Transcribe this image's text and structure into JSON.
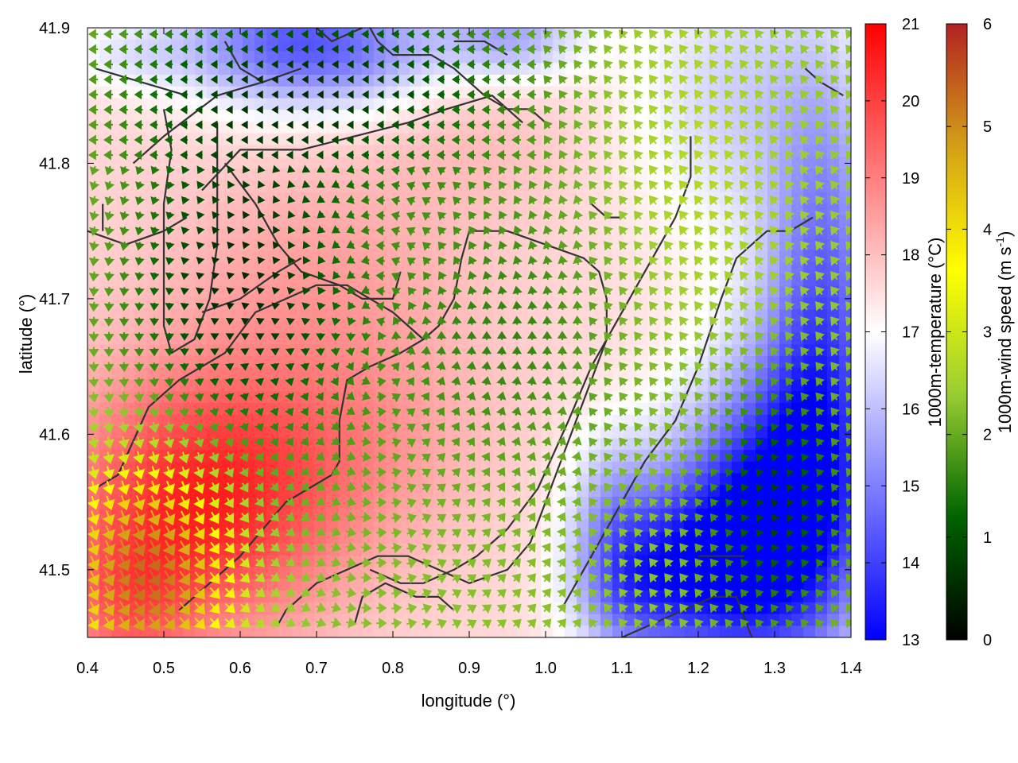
{
  "chart_data": {
    "type": "heatmap",
    "xlabel": "longitude (°)",
    "ylabel": "latitude (°)",
    "xlim": [
      0.4,
      1.4
    ],
    "ylim": [
      41.45,
      41.9
    ],
    "x_ticks": [
      "0.4",
      "0.5",
      "0.6",
      "0.7",
      "0.8",
      "0.9",
      "1.0",
      "1.1",
      "1.2",
      "1.3",
      "1.4"
    ],
    "y_ticks": [
      "41.5",
      "41.6",
      "41.7",
      "41.8",
      "41.9"
    ],
    "temperature_colorbar": {
      "label": "1000m-temperature (°C)",
      "range": [
        13,
        21
      ],
      "ticks": [
        "13",
        "14",
        "15",
        "16",
        "17",
        "18",
        "19",
        "20",
        "21"
      ],
      "colors": [
        "#0000ff",
        "#ffffff",
        "#ff0000"
      ]
    },
    "wind_colorbar": {
      "label_main": "1000m-wind speed (m s",
      "label_sup": "-1",
      "label_end": ")",
      "range": [
        0,
        6
      ],
      "ticks": [
        "0",
        "1",
        "2",
        "3",
        "4",
        "5",
        "6"
      ],
      "colors": [
        "#000000",
        "#006400",
        "#9acd32",
        "#ffff00",
        "#d4a017",
        "#b22222"
      ]
    },
    "temperature_field": {
      "background_c": 17.6,
      "anomalies": [
        {
          "lon": 0.55,
          "lat": 41.55,
          "dT": 2.8,
          "sigma_lon": 0.13,
          "sigma_lat": 0.07
        },
        {
          "lon": 0.76,
          "lat": 41.6,
          "dT": 0.8,
          "sigma_lon": 0.12,
          "sigma_lat": 0.06
        },
        {
          "lon": 0.7,
          "lat": 41.72,
          "dT": 0.8,
          "sigma_lon": 0.14,
          "sigma_lat": 0.06
        },
        {
          "lon": 0.9,
          "lat": 41.82,
          "dT": 0.4,
          "sigma_lon": 0.1,
          "sigma_lat": 0.04
        },
        {
          "lon": 0.66,
          "lat": 41.89,
          "dT": -3.0,
          "sigma_lon": 0.1,
          "sigma_lat": 0.035
        },
        {
          "lon": 0.95,
          "lat": 41.895,
          "dT": -2.0,
          "sigma_lon": 0.07,
          "sigma_lat": 0.025
        },
        {
          "lon": 0.78,
          "lat": 41.88,
          "dT": -1.0,
          "sigma_lon": 0.07,
          "sigma_lat": 0.03
        },
        {
          "lon": 1.29,
          "lat": 41.53,
          "dT": -4.2,
          "sigma_lon": 0.09,
          "sigma_lat": 0.08
        },
        {
          "lon": 1.36,
          "lat": 41.62,
          "dT": -2.5,
          "sigma_lon": 0.06,
          "sigma_lat": 0.1
        },
        {
          "lon": 1.37,
          "lat": 41.76,
          "dT": -1.5,
          "sigma_lon": 0.05,
          "sigma_lat": 0.1
        },
        {
          "lon": 1.18,
          "lat": 41.5,
          "dT": -2.5,
          "sigma_lon": 0.08,
          "sigma_lat": 0.05
        },
        {
          "lon": 1.1,
          "lat": 41.49,
          "dT": -1.8,
          "sigma_lon": 0.05,
          "sigma_lat": 0.04
        },
        {
          "lon": 1.08,
          "lat": 41.56,
          "dT": -1.0,
          "sigma_lon": 0.04,
          "sigma_lat": 0.04
        },
        {
          "lon": 1.25,
          "lat": 41.85,
          "dT": -1.3,
          "sigma_lon": 0.1,
          "sigma_lat": 0.08
        },
        {
          "lon": 0.45,
          "lat": 41.88,
          "dT": -0.8,
          "sigma_lon": 0.06,
          "sigma_lat": 0.02
        },
        {
          "lon": 0.45,
          "lat": 41.47,
          "dT": 1.2,
          "sigma_lon": 0.06,
          "sigma_lat": 0.04
        }
      ]
    },
    "wind_field": {
      "vortex": {
        "lon": 0.78,
        "lat": 41.67
      },
      "centers": [
        {
          "lon": 0.48,
          "lat": 41.5,
          "speed": 5.8,
          "sigma_lon": 0.08,
          "sigma_lat": 0.06
        },
        {
          "lon": 0.6,
          "lat": 41.62,
          "speed": 1.8,
          "sigma_lon": 0.14,
          "sigma_lat": 0.08
        },
        {
          "lon": 0.95,
          "lat": 41.68,
          "speed": 1.5,
          "sigma_lon": 0.12,
          "sigma_lat": 0.08
        },
        {
          "lon": 1.2,
          "lat": 41.8,
          "speed": 2.8,
          "sigma_lon": 0.1,
          "sigma_lat": 0.1
        },
        {
          "lon": 1.3,
          "lat": 41.86,
          "speed": 2.2,
          "sigma_lon": 0.05,
          "sigma_lat": 0.07
        }
      ],
      "base_speed": 2.3,
      "calm_zones": [
        {
          "lon": 0.7,
          "lat": 41.86,
          "sigma_lon": 0.18,
          "sigma_lat": 0.05
        },
        {
          "lon": 0.6,
          "lat": 41.72,
          "sigma_lon": 0.1,
          "sigma_lat": 0.07
        },
        {
          "lon": 1.3,
          "lat": 41.55,
          "sigma_lon": 0.06,
          "sigma_lat": 0.06
        }
      ]
    },
    "contours": [
      [
        [
          0.4,
          41.75
        ],
        [
          0.45,
          41.74
        ],
        [
          0.5,
          41.75
        ],
        [
          0.53,
          41.76
        ]
      ],
      [
        [
          0.46,
          41.8
        ],
        [
          0.5,
          41.82
        ],
        [
          0.57,
          41.85
        ],
        [
          0.63,
          41.86
        ]
      ],
      [
        [
          0.41,
          41.87
        ],
        [
          0.47,
          41.86
        ],
        [
          0.53,
          41.85
        ]
      ],
      [
        [
          0.5,
          41.84
        ],
        [
          0.51,
          41.81
        ],
        [
          0.5,
          41.77
        ],
        [
          0.5,
          41.72
        ],
        [
          0.5,
          41.68
        ],
        [
          0.51,
          41.66
        ],
        [
          0.54,
          41.67
        ],
        [
          0.56,
          41.7
        ],
        [
          0.57,
          41.74
        ],
        [
          0.57,
          41.78
        ],
        [
          0.57,
          41.81
        ],
        [
          0.57,
          41.83
        ]
      ],
      [
        [
          0.58,
          41.8
        ],
        [
          0.62,
          41.77
        ],
        [
          0.65,
          41.74
        ],
        [
          0.68,
          41.72
        ],
        [
          0.73,
          41.71
        ],
        [
          0.76,
          41.7
        ],
        [
          0.78,
          41.7
        ],
        [
          0.8,
          41.7
        ],
        [
          0.81,
          41.72
        ]
      ],
      [
        [
          0.55,
          41.78
        ],
        [
          0.6,
          41.81
        ],
        [
          0.68,
          41.81
        ],
        [
          0.75,
          41.82
        ],
        [
          0.82,
          41.83
        ],
        [
          0.87,
          41.84
        ],
        [
          0.93,
          41.85
        ],
        [
          0.97,
          41.83
        ]
      ],
      [
        [
          0.55,
          41.69
        ],
        [
          0.6,
          41.7
        ],
        [
          0.65,
          41.72
        ],
        [
          0.68,
          41.73
        ]
      ],
      [
        [
          0.58,
          41.89
        ],
        [
          0.6,
          41.87
        ],
        [
          0.63,
          41.86
        ],
        [
          0.68,
          41.87
        ]
      ],
      [
        [
          0.76,
          41.91
        ],
        [
          0.78,
          41.89
        ],
        [
          0.8,
          41.88
        ],
        [
          0.85,
          41.88
        ],
        [
          0.88,
          41.87
        ],
        [
          0.92,
          41.85
        ],
        [
          0.95,
          41.84
        ],
        [
          0.98,
          41.84
        ],
        [
          1.0,
          41.83
        ]
      ],
      [
        [
          0.7,
          41.9
        ],
        [
          0.72,
          41.89
        ],
        [
          0.76,
          41.9
        ]
      ],
      [
        [
          0.88,
          41.89
        ],
        [
          0.92,
          41.89
        ],
        [
          0.95,
          41.88
        ]
      ],
      [
        [
          0.41,
          41.56
        ],
        [
          0.44,
          41.57
        ],
        [
          0.48,
          41.62
        ],
        [
          0.52,
          41.64
        ],
        [
          0.58,
          41.66
        ],
        [
          0.62,
          41.69
        ],
        [
          0.66,
          41.7
        ],
        [
          0.7,
          41.71
        ],
        [
          0.74,
          41.71
        ],
        [
          0.77,
          41.7
        ],
        [
          0.8,
          41.69
        ],
        [
          0.82,
          41.68
        ],
        [
          0.84,
          41.67
        ],
        [
          0.86,
          41.68
        ],
        [
          0.88,
          41.7
        ],
        [
          0.89,
          41.73
        ],
        [
          0.9,
          41.75
        ],
        [
          0.95,
          41.75
        ],
        [
          1.0,
          41.74
        ],
        [
          1.05,
          41.73
        ],
        [
          1.07,
          41.72
        ],
        [
          1.08,
          41.7
        ],
        [
          1.08,
          41.67
        ],
        [
          1.06,
          41.64
        ],
        [
          1.04,
          41.61
        ],
        [
          1.02,
          41.58
        ],
        [
          1.0,
          41.55
        ],
        [
          0.98,
          41.52
        ],
        [
          0.95,
          41.5
        ],
        [
          0.9,
          41.49
        ],
        [
          0.86,
          41.5
        ],
        [
          0.82,
          41.51
        ],
        [
          0.78,
          41.51
        ],
        [
          0.74,
          41.5
        ],
        [
          0.7,
          41.49
        ],
        [
          0.66,
          41.47
        ],
        [
          0.65,
          41.46
        ]
      ],
      [
        [
          0.52,
          41.47
        ],
        [
          0.56,
          41.49
        ],
        [
          0.6,
          41.51
        ],
        [
          0.63,
          41.53
        ],
        [
          0.66,
          41.55
        ],
        [
          0.69,
          41.56
        ],
        [
          0.72,
          41.57
        ],
        [
          0.73,
          41.58
        ],
        [
          0.73,
          41.61
        ],
        [
          0.74,
          41.64
        ],
        [
          0.77,
          41.65
        ],
        [
          0.81,
          41.66
        ],
        [
          0.84,
          41.67
        ]
      ],
      [
        [
          0.77,
          41.5
        ],
        [
          0.81,
          41.49
        ],
        [
          0.84,
          41.49
        ],
        [
          0.88,
          41.5
        ],
        [
          0.91,
          41.51
        ],
        [
          0.95,
          41.53
        ],
        [
          0.99,
          41.56
        ],
        [
          1.03,
          41.61
        ],
        [
          1.06,
          41.65
        ],
        [
          1.1,
          41.69
        ],
        [
          1.14,
          41.73
        ],
        [
          1.17,
          41.76
        ],
        [
          1.19,
          41.79
        ],
        [
          1.19,
          41.82
        ]
      ],
      [
        [
          0.75,
          41.46
        ],
        [
          0.76,
          41.48
        ],
        [
          0.79,
          41.49
        ],
        [
          0.83,
          41.48
        ],
        [
          0.86,
          41.48
        ],
        [
          0.88,
          41.47
        ]
      ],
      [
        [
          1.02,
          41.47
        ],
        [
          1.05,
          41.5
        ],
        [
          1.09,
          41.54
        ],
        [
          1.13,
          41.58
        ],
        [
          1.17,
          41.61
        ],
        [
          1.2,
          41.65
        ],
        [
          1.23,
          41.7
        ],
        [
          1.25,
          41.73
        ],
        [
          1.27,
          41.74
        ],
        [
          1.29,
          41.75
        ],
        [
          1.32,
          41.75
        ],
        [
          1.35,
          41.76
        ]
      ],
      [
        [
          1.1,
          41.45
        ],
        [
          1.14,
          41.46
        ],
        [
          1.18,
          41.47
        ],
        [
          1.22,
          41.48
        ],
        [
          1.25,
          41.48
        ],
        [
          1.27,
          41.45
        ]
      ],
      [
        [
          1.2,
          41.51
        ],
        [
          1.24,
          41.51
        ],
        [
          1.26,
          41.51
        ]
      ],
      [
        [
          1.06,
          41.77
        ],
        [
          1.08,
          41.76
        ],
        [
          1.1,
          41.76
        ]
      ],
      [
        [
          1.34,
          41.87
        ],
        [
          1.36,
          41.86
        ],
        [
          1.39,
          41.85
        ]
      ],
      [
        [
          0.42,
          41.77
        ],
        [
          0.42,
          41.75
        ]
      ]
    ]
  }
}
